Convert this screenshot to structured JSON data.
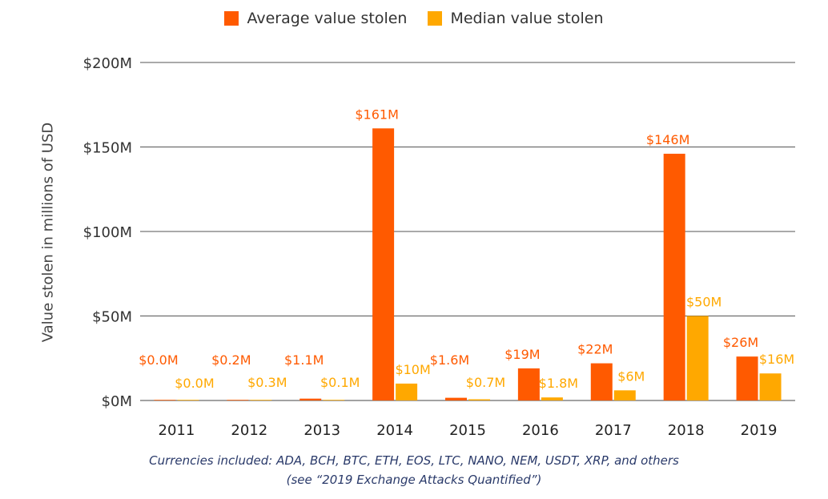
{
  "chart_data": {
    "type": "bar",
    "categories": [
      "2011",
      "2012",
      "2013",
      "2014",
      "2015",
      "2016",
      "2017",
      "2018",
      "2019"
    ],
    "series": [
      {
        "name": "Average value stolen",
        "color": "#ff5a00",
        "values": [
          0.0,
          0.2,
          1.1,
          161,
          1.6,
          19,
          22,
          146,
          26
        ],
        "labels": [
          "$0.0M",
          "$0.2M",
          "$1.1M",
          "$161M",
          "$1.6M",
          "$19M",
          "$22M",
          "$146M",
          "$26M"
        ]
      },
      {
        "name": "Median value stolen",
        "color": "#ffa800",
        "values": [
          0.0,
          0.3,
          0.1,
          10,
          0.7,
          1.8,
          6,
          50,
          16
        ],
        "labels": [
          "$0.0M",
          "$0.3M",
          "$0.1M",
          "$10M",
          "$0.7M",
          "$1.8M",
          "$6M",
          "$50M",
          "$16M"
        ]
      }
    ],
    "ylabel": "Value stolen in millions of USD",
    "ylim": [
      0,
      200
    ],
    "yticks": [
      0,
      50,
      100,
      150,
      200
    ],
    "ytick_labels": [
      "$0M",
      "$50M",
      "$100M",
      "$150M",
      "$200M"
    ],
    "grid": true,
    "legend": "top-center"
  },
  "footnote": {
    "line1": "Currencies included: ADA, BCH, BTC, ETH, EOS, LTC, NANO, NEM, USDT, XRP, and others",
    "line2": "(see “2019 Exchange Attacks Quantified”)"
  }
}
